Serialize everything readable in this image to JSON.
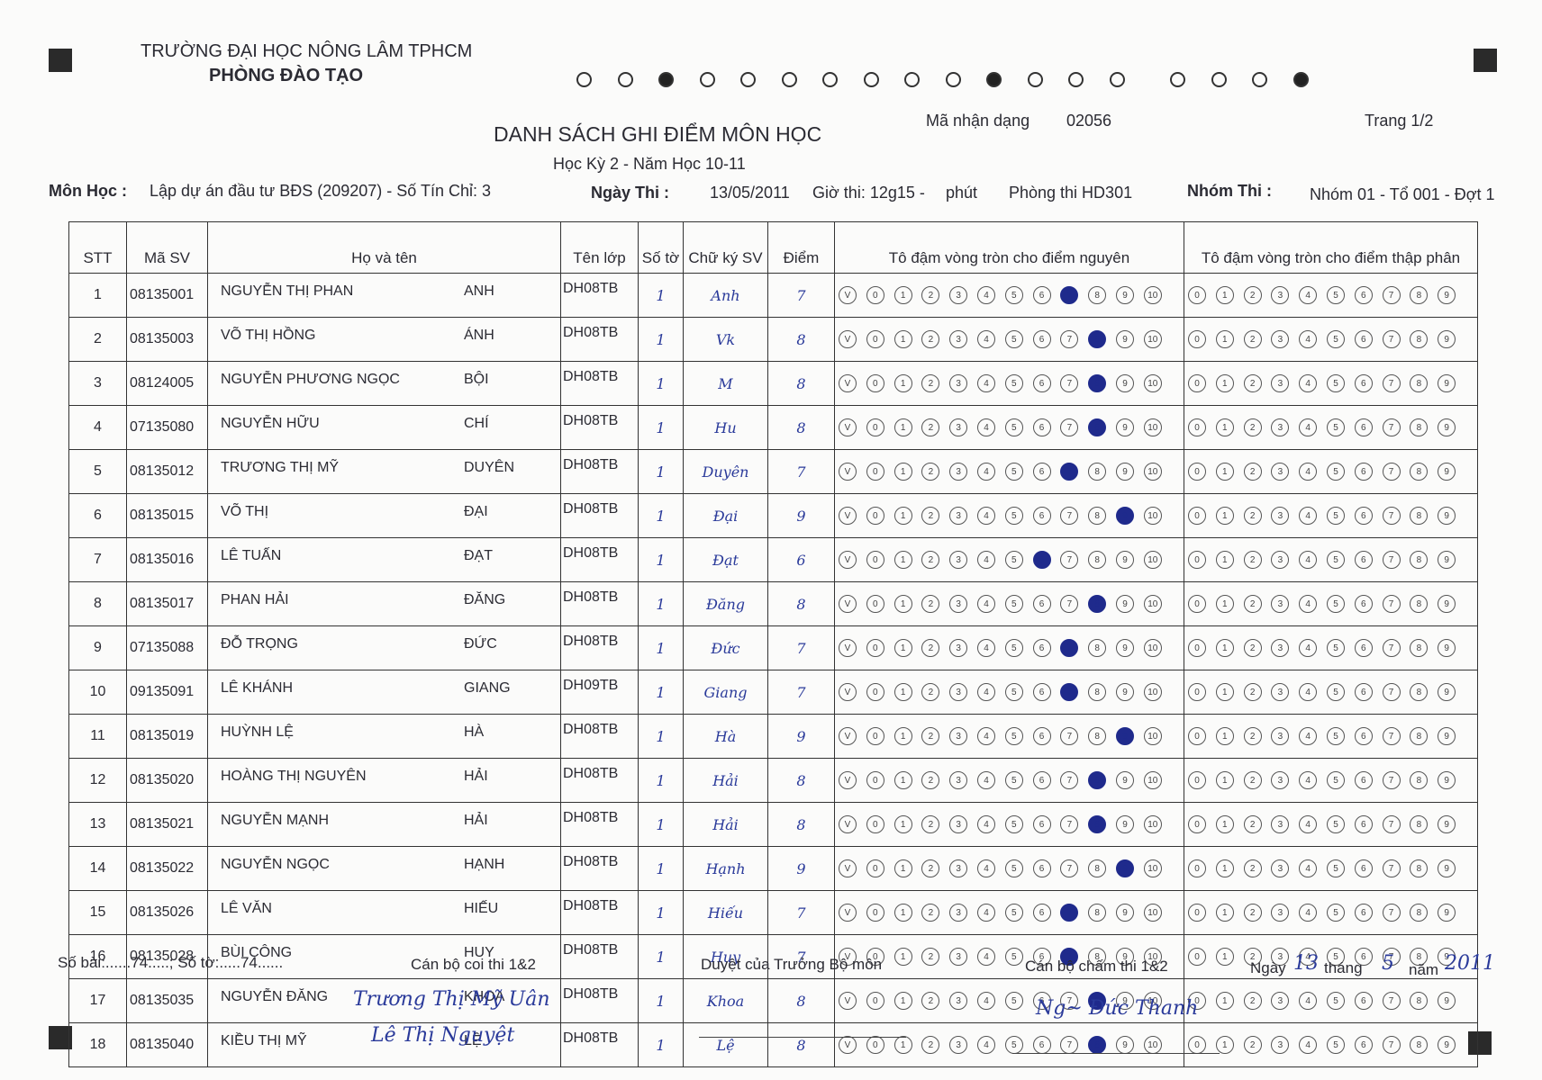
{
  "header": {
    "university": "TRƯỜNG ĐẠI HỌC NÔNG LÂM TPHCM",
    "office": "PHÒNG ĐÀO TẠO",
    "title": "DANH SÁCH GHI ĐIỂM MÔN HỌC",
    "term": "Học Kỳ 2 - Năm Học 10-11",
    "id_label": "Mã nhận dạng",
    "id_value": "02056",
    "page": "Trang 1/2",
    "course_label": "Môn Học :",
    "course_value": "Lập dự án đầu tư BĐS (209207) - Số Tín Chỉ: 3",
    "exam_date_label": "Ngày Thi :",
    "exam_date_value": "13/05/2011",
    "exam_time": "Giờ thi: 12g15 -",
    "minutes": "phút",
    "room": "Phòng thi HD301",
    "group_label": "Nhóm Thi :",
    "group_value": "Nhóm 01 - Tổ 001 - Đợt 1"
  },
  "timing_marks": [
    0,
    0,
    1,
    0,
    0,
    0,
    0,
    0,
    0,
    0,
    1,
    0,
    0,
    0,
    0,
    0,
    0,
    1
  ],
  "table": {
    "columns": [
      "STT",
      "Mã SV",
      "Họ và tên",
      "Tên lớp",
      "Số tờ",
      "Chữ ký SV",
      "Điểm",
      "Tô đậm vòng tròn cho điểm nguyên",
      "Tô đậm vòng tròn cho điểm thập phân"
    ],
    "integer_bubbles": [
      "V",
      "0",
      "1",
      "2",
      "3",
      "4",
      "5",
      "6",
      "7",
      "8",
      "9",
      "10"
    ],
    "decimal_bubbles": [
      "0",
      "1",
      "2",
      "3",
      "4",
      "5",
      "6",
      "7",
      "8",
      "9"
    ],
    "rows": [
      {
        "stt": "1",
        "id": "08135001",
        "ho": "NGUYỄN THỊ PHAN",
        "ten": "ANH",
        "lop": "DH08TB",
        "to": "1",
        "sig": "Anh",
        "diem": "7"
      },
      {
        "stt": "2",
        "id": "08135003",
        "ho": "VÕ THỊ HỒNG",
        "ten": "ÁNH",
        "lop": "DH08TB",
        "to": "1",
        "sig": "Vk",
        "diem": "8"
      },
      {
        "stt": "3",
        "id": "08124005",
        "ho": "NGUYỄN PHƯƠNG NGỌC",
        "ten": "BỘI",
        "lop": "DH08TB",
        "to": "1",
        "sig": "M",
        "diem": "8"
      },
      {
        "stt": "4",
        "id": "07135080",
        "ho": "NGUYỄN HỮU",
        "ten": "CHÍ",
        "lop": "DH08TB",
        "to": "1",
        "sig": "Hu",
        "diem": "8"
      },
      {
        "stt": "5",
        "id": "08135012",
        "ho": "TRƯƠNG THỊ MỸ",
        "ten": "DUYÊN",
        "lop": "DH08TB",
        "to": "1",
        "sig": "Duyên",
        "diem": "7"
      },
      {
        "stt": "6",
        "id": "08135015",
        "ho": "VÕ THỊ",
        "ten": "ĐẠI",
        "lop": "DH08TB",
        "to": "1",
        "sig": "Đại",
        "diem": "9"
      },
      {
        "stt": "7",
        "id": "08135016",
        "ho": "LÊ TUẤN",
        "ten": "ĐẠT",
        "lop": "DH08TB",
        "to": "1",
        "sig": "Đạt",
        "diem": "6"
      },
      {
        "stt": "8",
        "id": "08135017",
        "ho": "PHAN HẢI",
        "ten": "ĐĂNG",
        "lop": "DH08TB",
        "to": "1",
        "sig": "Đăng",
        "diem": "8"
      },
      {
        "stt": "9",
        "id": "07135088",
        "ho": "ĐỖ TRỌNG",
        "ten": "ĐỨC",
        "lop": "DH08TB",
        "to": "1",
        "sig": "Đức",
        "diem": "7"
      },
      {
        "stt": "10",
        "id": "09135091",
        "ho": "LÊ KHÁNH",
        "ten": "GIANG",
        "lop": "DH09TB",
        "to": "1",
        "sig": "Giang",
        "diem": "7"
      },
      {
        "stt": "11",
        "id": "08135019",
        "ho": "HUỲNH LỆ",
        "ten": "HÀ",
        "lop": "DH08TB",
        "to": "1",
        "sig": "Hà",
        "diem": "9"
      },
      {
        "stt": "12",
        "id": "08135020",
        "ho": "HOÀNG THỊ NGUYÊN",
        "ten": "HẢI",
        "lop": "DH08TB",
        "to": "1",
        "sig": "Hải",
        "diem": "8"
      },
      {
        "stt": "13",
        "id": "08135021",
        "ho": "NGUYỄN MẠNH",
        "ten": "HẢI",
        "lop": "DH08TB",
        "to": "1",
        "sig": "Hải",
        "diem": "8"
      },
      {
        "stt": "14",
        "id": "08135022",
        "ho": "NGUYỄN NGỌC",
        "ten": "HẠNH",
        "lop": "DH08TB",
        "to": "1",
        "sig": "Hạnh",
        "diem": "9"
      },
      {
        "stt": "15",
        "id": "08135026",
        "ho": "LÊ VĂN",
        "ten": "HIẾU",
        "lop": "DH08TB",
        "to": "1",
        "sig": "Hiếu",
        "diem": "7"
      },
      {
        "stt": "16",
        "id": "08135028",
        "ho": "BÙI CÔNG",
        "ten": "HUY",
        "lop": "DH08TB",
        "to": "1",
        "sig": "Huy",
        "diem": "7"
      },
      {
        "stt": "17",
        "id": "08135035",
        "ho": "NGUYỄN ĐĂNG",
        "ten": "KHOA",
        "lop": "DH08TB",
        "to": "1",
        "sig": "Khoa",
        "diem": "8"
      },
      {
        "stt": "18",
        "id": "08135040",
        "ho": "KIỀU THỊ MỸ",
        "ten": "LỆ",
        "lop": "DH08TB",
        "to": "1",
        "sig": "Lệ",
        "diem": "8"
      }
    ]
  },
  "footer": {
    "so_bai": "Số bài:......74.....; Số tờ:.....74......",
    "proctors_label": "Cán bộ coi thi 1&2",
    "proctor_sig_1": "Trương Thị Mỹ Uân",
    "proctor_sig_2": "Lê Thị Nguyệt",
    "dept_label": "Duyệt của Trưởng Bộ môn",
    "graders_label": "Cán bộ chấm thi 1&2",
    "grader_sig": "Ng~ Đức Thanh",
    "date_label_day": "Ngày",
    "date_day": "13",
    "date_label_month": "tháng",
    "date_month": "5",
    "date_label_year": "năm",
    "date_year": "2011"
  }
}
